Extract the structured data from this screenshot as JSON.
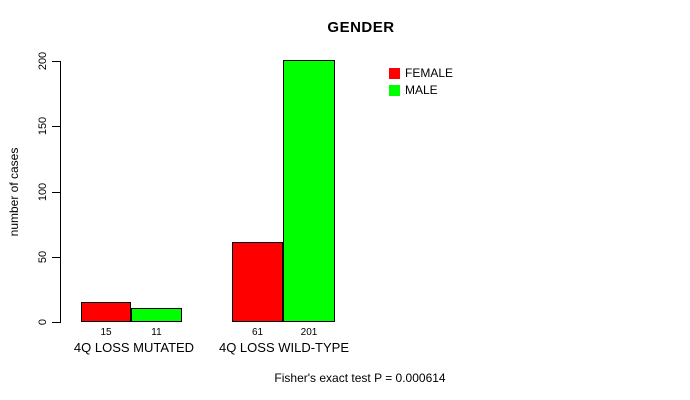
{
  "chart_data": {
    "type": "bar",
    "title": "GENDER",
    "ylabel": "number of cases",
    "xlabel": "",
    "ylim": [
      0,
      200
    ],
    "yticks": [
      0,
      50,
      100,
      150,
      200
    ],
    "grid": false,
    "legend_position": "top-right",
    "categories": [
      "4Q LOSS MUTATED",
      "4Q LOSS WILD-TYPE"
    ],
    "series": [
      {
        "name": "FEMALE",
        "color": "#FF0000",
        "values": [
          15,
          61
        ]
      },
      {
        "name": "MALE",
        "color": "#00FF00",
        "values": [
          11,
          201
        ]
      }
    ],
    "annotation": "Fisher's exact test P = 0.000614"
  }
}
